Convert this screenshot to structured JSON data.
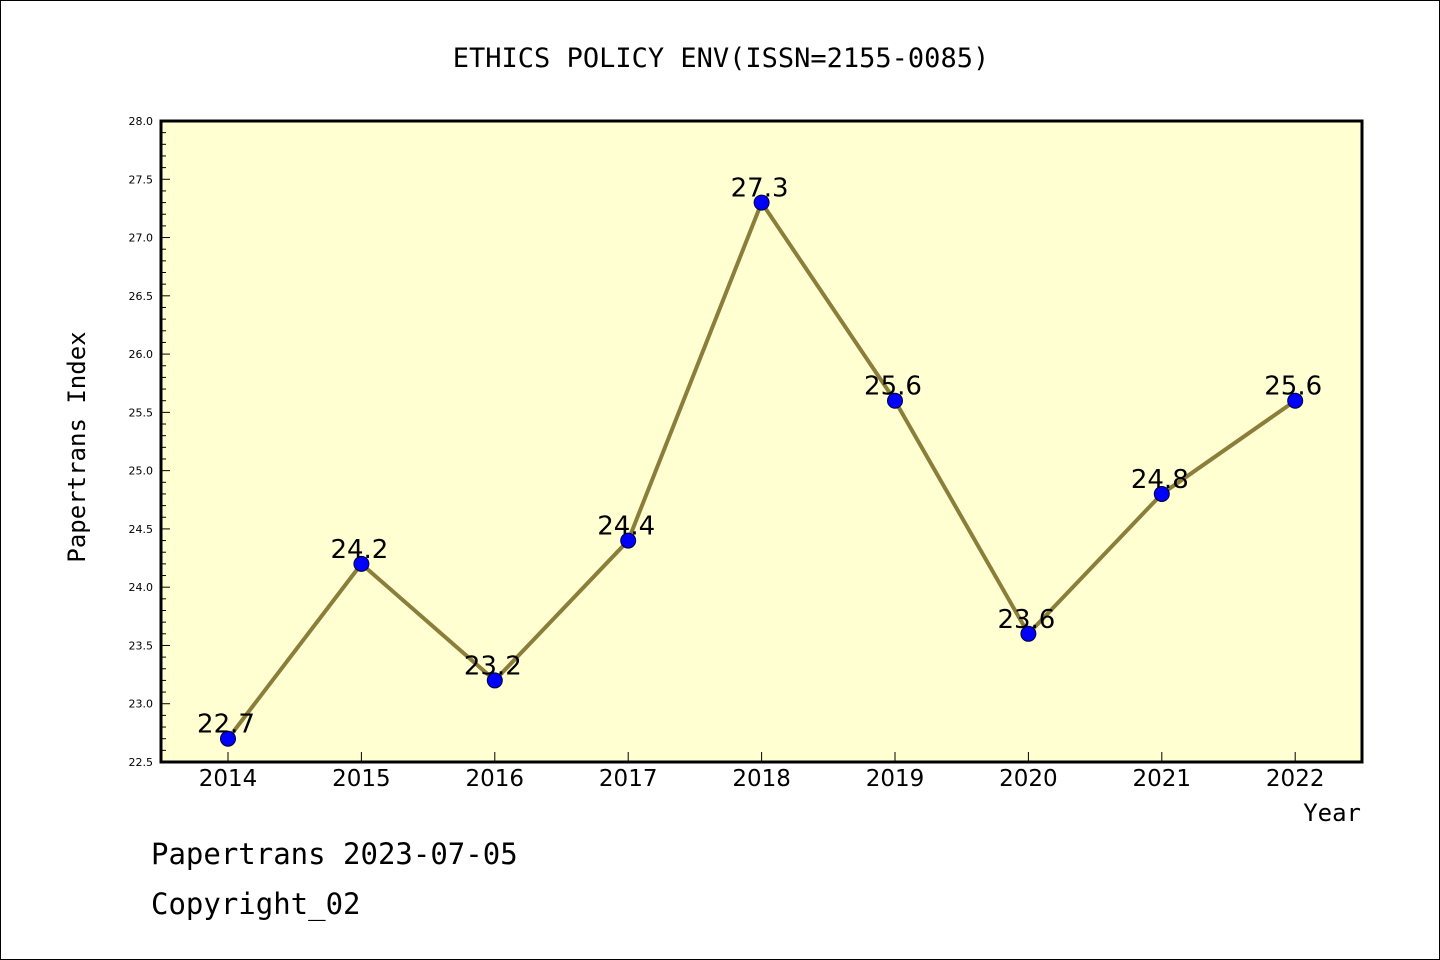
{
  "chart_data": {
    "type": "line",
    "title": "ETHICS POLICY ENV(ISSN=2155-0085)",
    "xlabel": "Year",
    "ylabel": "Papertrans Index",
    "categories": [
      "2014",
      "2015",
      "2016",
      "2017",
      "2018",
      "2019",
      "2020",
      "2021",
      "2022"
    ],
    "series": [
      {
        "values": [
          22.7,
          24.2,
          23.2,
          24.4,
          27.3,
          25.6,
          23.6,
          24.8,
          25.6
        ],
        "data_labels": [
          "22.7",
          "24.2",
          "23.2",
          "24.4",
          "27.3",
          "25.6",
          "23.6",
          "24.8",
          "25.6"
        ]
      }
    ],
    "ylim": [
      22.5,
      28.0
    ],
    "y_ticks": [
      "22.5",
      "23.0",
      "23.5",
      "24.0",
      "24.5",
      "25.0",
      "25.5",
      "26.0",
      "26.5",
      "27.0",
      "27.5",
      "28.0"
    ],
    "grid": false,
    "legend": "none",
    "colors": {
      "plot_background": "#ffffd2",
      "line": "#8b7d3a",
      "marker": "#0000ff",
      "axis": "#000000"
    }
  },
  "footer": {
    "date_line": "Papertrans 2023-07-05",
    "copyright_line": "Copyright_02"
  }
}
